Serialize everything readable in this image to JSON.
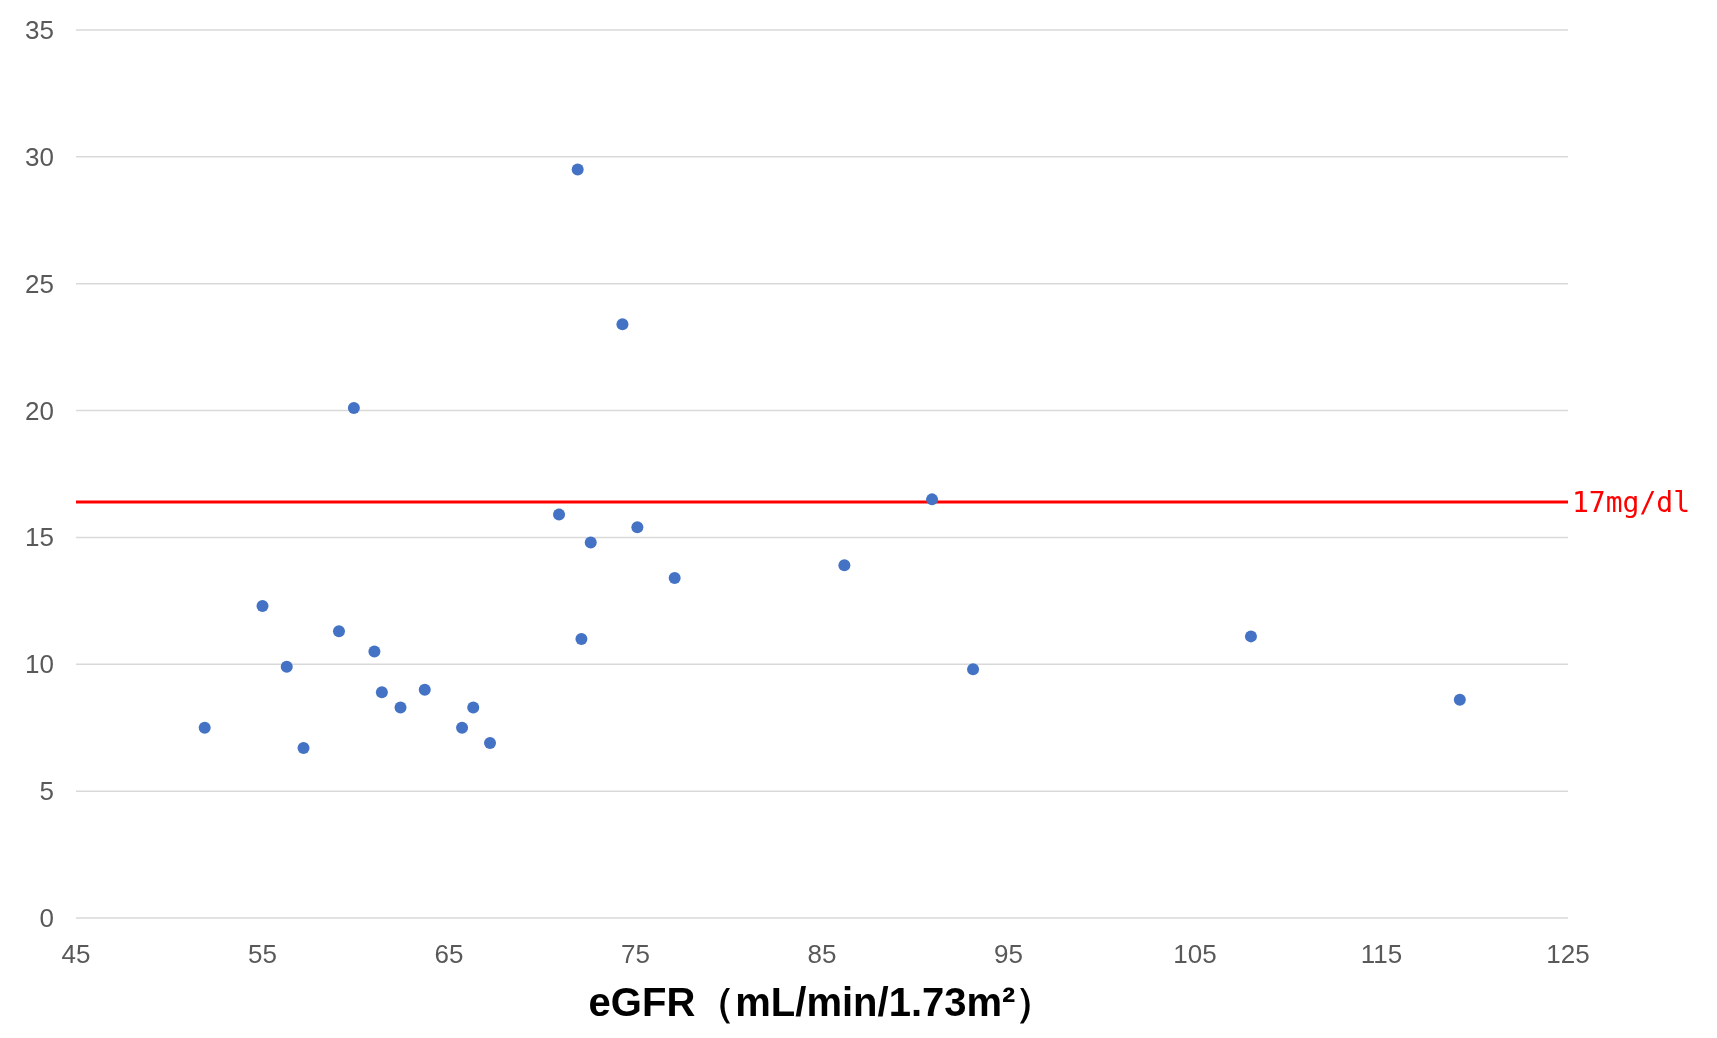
{
  "chart_data": {
    "type": "scatter",
    "xlabel": "eGFR（mL/min/1.73m²）",
    "x": [
      51.9,
      55.0,
      56.3,
      57.2,
      59.1,
      59.9,
      61.0,
      61.4,
      62.4,
      63.7,
      65.7,
      66.3,
      67.2,
      70.9,
      71.9,
      72.1,
      72.6,
      74.3,
      75.1,
      77.1,
      86.2,
      90.9,
      93.1,
      108.0,
      119.2
    ],
    "series": [
      {
        "color": "#4472c4",
        "values": [
          7.5,
          12.3,
          9.9,
          6.7,
          11.3,
          20.1,
          10.5,
          8.9,
          8.3,
          9.0,
          7.5,
          8.3,
          6.9,
          15.9,
          29.5,
          11.0,
          14.8,
          23.4,
          15.4,
          13.4,
          13.9,
          16.5,
          9.8,
          11.1,
          8.6
        ]
      }
    ],
    "xlim": [
      45,
      125
    ],
    "xticks": [
      45,
      55,
      65,
      75,
      85,
      95,
      105,
      115,
      125
    ],
    "ylim": [
      0,
      35
    ],
    "yticks": [
      0,
      5,
      10,
      15,
      20,
      25,
      30,
      35
    ],
    "grid": "y",
    "marker": "circle",
    "ref_lines": [
      {
        "axis": "y",
        "value": 16.4,
        "label": "17mg/dl",
        "color": "#ff0000"
      }
    ]
  }
}
